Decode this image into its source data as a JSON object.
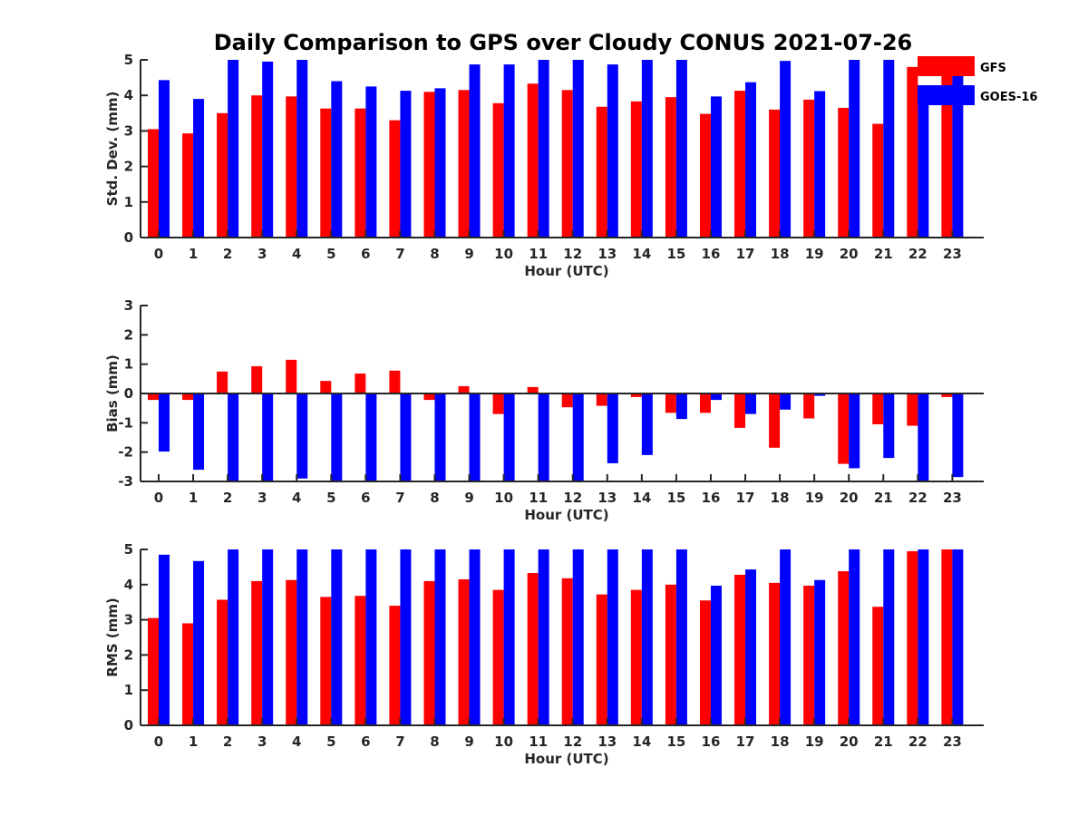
{
  "chart_data": [
    {
      "type": "bar",
      "title": "Daily Comparison to GPS over Cloudy CONUS 2021-07-26",
      "xlabel": "Hour (UTC)",
      "ylabel": "Std. Dev. (mm)",
      "ylim": [
        0,
        5
      ],
      "yticks": [
        0,
        1,
        2,
        3,
        4,
        5
      ],
      "categories": [
        "0",
        "1",
        "2",
        "3",
        "4",
        "5",
        "6",
        "7",
        "8",
        "9",
        "10",
        "11",
        "12",
        "13",
        "14",
        "15",
        "16",
        "17",
        "18",
        "19",
        "20",
        "21",
        "22",
        "23"
      ],
      "legend": "top-right",
      "series": [
        {
          "name": "GFS",
          "color": "#ff0000",
          "values": [
            3.05,
            2.93,
            3.5,
            4.0,
            3.97,
            3.63,
            3.63,
            3.3,
            4.1,
            4.15,
            3.78,
            4.33,
            4.15,
            3.68,
            3.83,
            3.95,
            3.48,
            4.13,
            3.6,
            3.88,
            3.65,
            3.2,
            4.8,
            4.6
          ]
        },
        {
          "name": "GOES-16",
          "color": "#0000ff",
          "values": [
            4.43,
            3.9,
            5.0,
            4.95,
            5.0,
            4.4,
            4.25,
            4.13,
            4.2,
            4.87,
            4.87,
            5.0,
            5.0,
            4.87,
            5.0,
            5.0,
            3.97,
            4.37,
            4.97,
            4.12,
            5.0,
            5.0,
            4.1,
            4.6
          ]
        }
      ]
    },
    {
      "type": "bar",
      "title": "",
      "xlabel": "Hour (UTC)",
      "ylabel": "Bias (mm)",
      "ylim": [
        -3,
        3
      ],
      "yticks": [
        -3,
        -2,
        -1,
        0,
        1,
        2,
        3
      ],
      "categories": [
        "0",
        "1",
        "2",
        "3",
        "4",
        "5",
        "6",
        "7",
        "8",
        "9",
        "10",
        "11",
        "12",
        "13",
        "14",
        "15",
        "16",
        "17",
        "18",
        "19",
        "20",
        "21",
        "22",
        "23"
      ],
      "zero_line": true,
      "series": [
        {
          "name": "GFS",
          "color": "#ff0000",
          "values": [
            -0.22,
            -0.22,
            0.75,
            0.93,
            1.15,
            0.43,
            0.68,
            0.78,
            -0.22,
            0.25,
            -0.7,
            0.22,
            -0.47,
            -0.42,
            -0.12,
            -0.66,
            -0.66,
            -1.17,
            -1.85,
            -0.85,
            -2.4,
            -1.05,
            -1.1,
            -0.12
          ]
        },
        {
          "name": "GOES-16",
          "color": "#0000ff",
          "values": [
            -1.98,
            -2.6,
            -3.0,
            -3.0,
            -2.9,
            -3.0,
            -3.0,
            -3.0,
            -3.0,
            -3.0,
            -3.0,
            -3.0,
            -3.0,
            -2.38,
            -2.1,
            -0.87,
            -0.22,
            -0.7,
            -0.55,
            -0.08,
            -2.55,
            -2.2,
            -3.0,
            -2.85
          ]
        }
      ]
    },
    {
      "type": "bar",
      "title": "",
      "xlabel": "Hour (UTC)",
      "ylabel": "RMS (mm)",
      "ylim": [
        0,
        5
      ],
      "yticks": [
        0,
        1,
        2,
        3,
        4,
        5
      ],
      "categories": [
        "0",
        "1",
        "2",
        "3",
        "4",
        "5",
        "6",
        "7",
        "8",
        "9",
        "10",
        "11",
        "12",
        "13",
        "14",
        "15",
        "16",
        "17",
        "18",
        "19",
        "20",
        "21",
        "22",
        "23"
      ],
      "series": [
        {
          "name": "GFS",
          "color": "#ff0000",
          "values": [
            3.05,
            2.9,
            3.57,
            4.1,
            4.13,
            3.65,
            3.68,
            3.4,
            4.1,
            4.15,
            3.85,
            4.33,
            4.18,
            3.72,
            3.85,
            4.0,
            3.55,
            4.28,
            4.05,
            3.97,
            4.38,
            3.37,
            4.95,
            5.0
          ]
        },
        {
          "name": "GOES-16",
          "color": "#0000ff",
          "values": [
            4.85,
            4.67,
            5.0,
            5.0,
            5.0,
            5.0,
            5.0,
            5.0,
            5.0,
            5.0,
            5.0,
            5.0,
            5.0,
            5.0,
            5.0,
            5.0,
            3.97,
            4.43,
            5.0,
            4.13,
            5.0,
            5.0,
            5.0,
            5.0
          ]
        }
      ]
    }
  ]
}
